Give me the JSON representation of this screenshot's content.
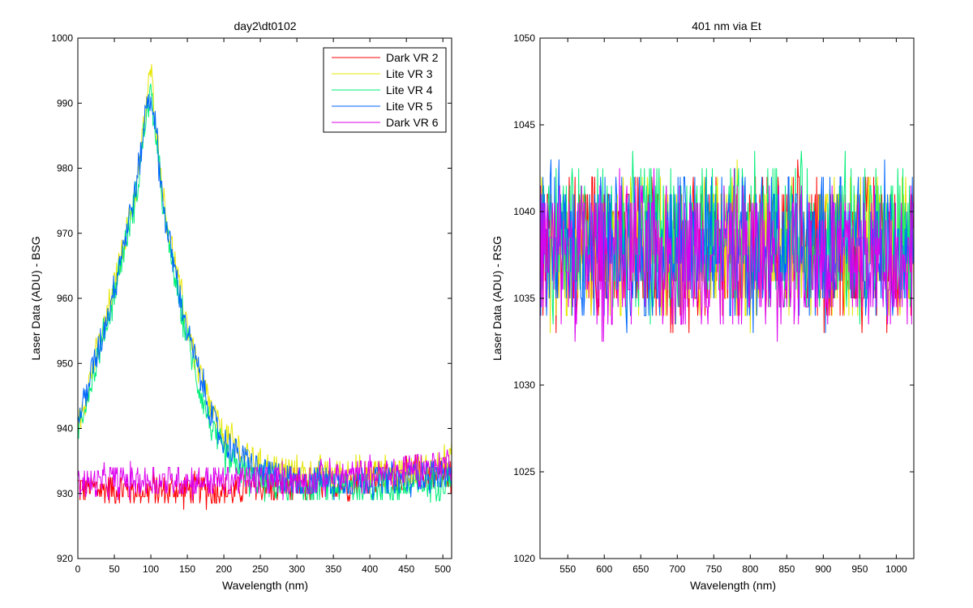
{
  "chart_data": [
    {
      "type": "line",
      "title": "day2\\dt0102",
      "xlabel": "Wavelength (nm)",
      "ylabel": "Laser Data (ADU) - BSG",
      "xlim": [
        0,
        512
      ],
      "ylim": [
        920,
        1000
      ],
      "xticks": [
        0,
        50,
        100,
        150,
        200,
        250,
        300,
        350,
        400,
        450,
        500
      ],
      "yticks": [
        920,
        930,
        940,
        950,
        960,
        970,
        980,
        990,
        1000
      ],
      "grid": false,
      "legend_position": "top-right",
      "x": [
        0,
        10,
        20,
        30,
        40,
        50,
        60,
        70,
        80,
        85,
        90,
        95,
        100,
        105,
        110,
        115,
        120,
        130,
        140,
        150,
        160,
        170,
        180,
        190,
        200,
        210,
        220,
        230,
        240,
        250,
        260,
        280,
        300,
        320,
        340,
        360,
        380,
        400,
        420,
        440,
        460,
        480,
        500,
        512
      ],
      "series": [
        {
          "name": "Dark VR 2",
          "color": "#ff0000",
          "noise": 3,
          "values": [
            931,
            931,
            931,
            930.5,
            930.5,
            930.5,
            930.5,
            930.5,
            930.5,
            930.5,
            930.5,
            930.5,
            930.5,
            930.5,
            930.5,
            930.5,
            930.5,
            930.5,
            930.5,
            930.5,
            930.5,
            930.5,
            930.5,
            930.5,
            930.5,
            930.5,
            930.5,
            931,
            931,
            931,
            931,
            931,
            931,
            931,
            931.5,
            931.5,
            932,
            932,
            932.5,
            932.5,
            933,
            933,
            933,
            933
          ]
        },
        {
          "name": "Lite VR 3",
          "color": "#e6e600",
          "noise": 3,
          "values": [
            940,
            945,
            949,
            953,
            957,
            962,
            967,
            972,
            977,
            981,
            986,
            991,
            995,
            990,
            983,
            978,
            973,
            967,
            961,
            956,
            951,
            947,
            944,
            941,
            939,
            938,
            937,
            936,
            935,
            934,
            934,
            933.5,
            933,
            933,
            933,
            933,
            933,
            933,
            933,
            933,
            933.5,
            934,
            934.5,
            935
          ]
        },
        {
          "name": "Lite VR 4",
          "color": "#00ee77",
          "noise": 3,
          "values": [
            940,
            944,
            948,
            952,
            956,
            961,
            966,
            971,
            976,
            980,
            985,
            989,
            991,
            987,
            981,
            976,
            971,
            965,
            959,
            954,
            949,
            945,
            941,
            938,
            936,
            935,
            934,
            933,
            932,
            932,
            931.5,
            931,
            931,
            931,
            931,
            931,
            931,
            931,
            931,
            931,
            931,
            931.5,
            932,
            932
          ]
        },
        {
          "name": "Lite VR 5",
          "color": "#0066ff",
          "noise": 3,
          "values": [
            941,
            945,
            949,
            953,
            957,
            962,
            967,
            972,
            977,
            981,
            986,
            990,
            991,
            988,
            982,
            977,
            972,
            966,
            960,
            955,
            951,
            947,
            943,
            940,
            938,
            937,
            936,
            935,
            934,
            933.5,
            933,
            932.5,
            932,
            932,
            932,
            932,
            932,
            932,
            932,
            932,
            932.5,
            933,
            933,
            933
          ]
        },
        {
          "name": "Dark VR 6",
          "color": "#dd00ee",
          "noise": 3,
          "values": [
            931.5,
            931.5,
            931.5,
            931.5,
            932,
            932,
            932,
            932,
            932,
            932,
            932,
            932,
            932,
            932,
            932,
            932,
            932,
            932,
            932,
            932,
            932,
            932,
            932,
            932,
            932,
            932,
            932,
            932,
            932,
            932,
            932,
            932,
            932,
            932,
            932.5,
            932.5,
            933,
            933,
            933,
            933.5,
            934,
            934,
            934.5,
            935
          ]
        }
      ]
    },
    {
      "type": "line",
      "title": "401 nm via Et",
      "xlabel": "Wavelength (nm)",
      "ylabel": "Laser Data (ADU) - RSG",
      "xlim": [
        512,
        1024
      ],
      "ylim": [
        1020,
        1050
      ],
      "xticks": [
        550,
        600,
        650,
        700,
        750,
        800,
        850,
        900,
        950,
        1000
      ],
      "yticks": [
        1020,
        1025,
        1030,
        1035,
        1040,
        1045,
        1050
      ],
      "grid": false,
      "x": [
        512,
        1024
      ],
      "series": [
        {
          "color": "#ff0000",
          "noise": 5,
          "values": [
            1038,
            1038
          ]
        },
        {
          "color": "#e6e600",
          "noise": 5,
          "values": [
            1038,
            1038
          ]
        },
        {
          "color": "#00ee77",
          "noise": 5,
          "values": [
            1038.5,
            1038.5
          ]
        },
        {
          "color": "#0066ff",
          "noise": 5,
          "values": [
            1038,
            1038
          ]
        },
        {
          "color": "#dd00ee",
          "noise": 5,
          "values": [
            1037.5,
            1037.5
          ]
        }
      ]
    }
  ]
}
